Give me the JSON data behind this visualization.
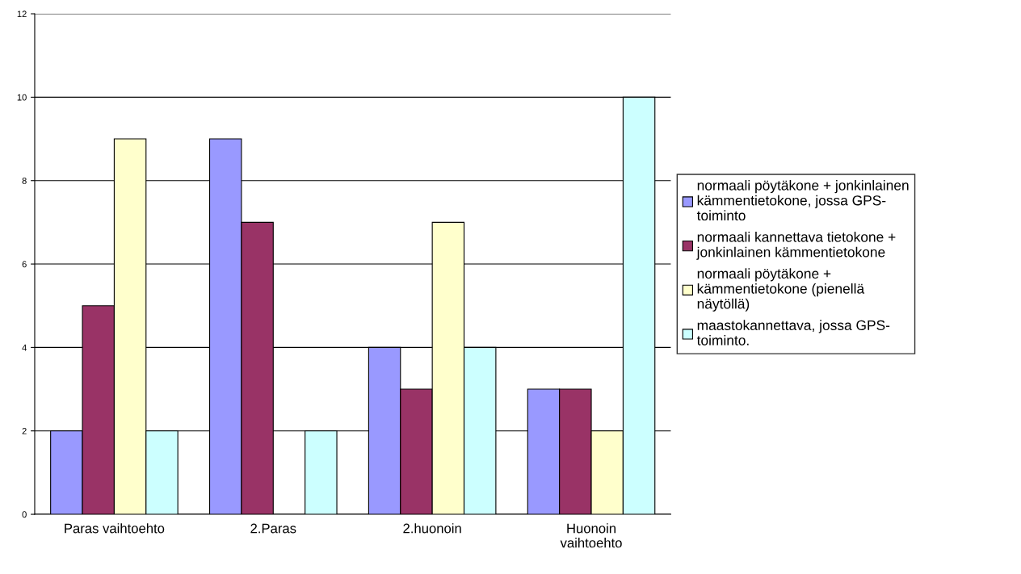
{
  "chart_data": {
    "type": "bar",
    "categories": [
      "Paras vaihtoehto",
      "2.Paras",
      "2.huonoin",
      "Huonoin\nvaihtoehto"
    ],
    "series": [
      {
        "name": "normaali pöytäkone + jonkinlainen\nkämmentietokone, jossa GPS-\ntoiminto",
        "color": "#9999ff",
        "values": [
          2,
          9,
          4,
          3
        ]
      },
      {
        "name": "normaali kannettava tietokone +\njonkinlainen kämmentietokone",
        "color": "#993366",
        "values": [
          5,
          7,
          3,
          3
        ]
      },
      {
        "name": "normaali pöytäkone +\nkämmentietokone (pienellä\nnäytöllä)",
        "color": "#ffffcc",
        "values": [
          9,
          0,
          7,
          2
        ]
      },
      {
        "name": "maastokannettava, jossa GPS-\ntoiminto.",
        "color": "#ccffff",
        "values": [
          2,
          2,
          4,
          10
        ]
      }
    ],
    "ylim": [
      0,
      12
    ],
    "yticks": [
      0,
      2,
      4,
      6,
      8,
      10,
      12
    ],
    "grid": "y",
    "legend": "right"
  }
}
